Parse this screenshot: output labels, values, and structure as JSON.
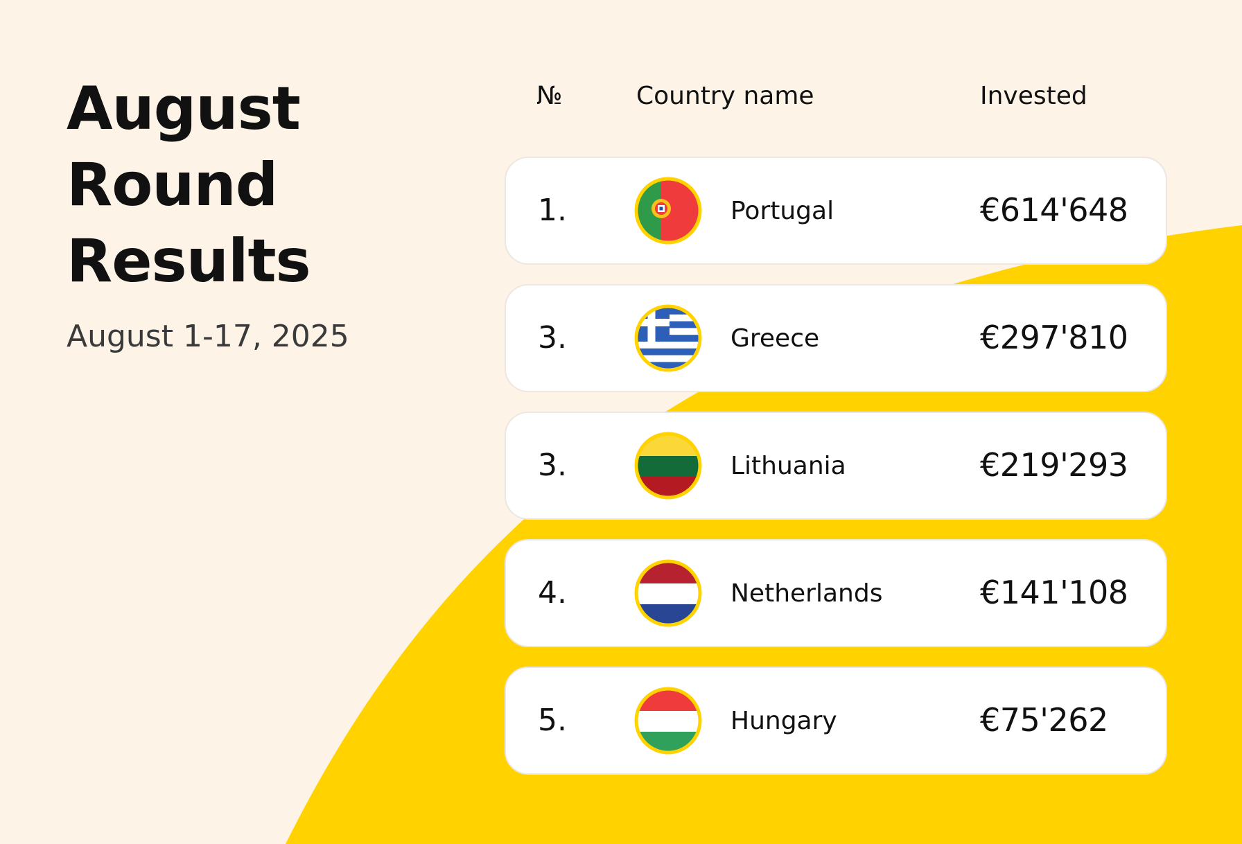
{
  "title": {
    "line1": "August",
    "line2": "Round",
    "line3": "Results"
  },
  "subtitle": "August 1-17, 2025",
  "colors": {
    "background": "#fdf3e7",
    "accent": "#ffd200",
    "card": "#ffffff",
    "flag_ring": "#ffd200"
  },
  "table": {
    "headers": {
      "number": "№",
      "country": "Country name",
      "invested": "Invested"
    },
    "rows": [
      {
        "rank": "1.",
        "country": "Portugal",
        "invested": "€614'648",
        "flag_icon": "portugal-flag-icon"
      },
      {
        "rank": "3.",
        "country": "Greece",
        "invested": "€297'810",
        "flag_icon": "greece-flag-icon"
      },
      {
        "rank": "3.",
        "country": "Lithuania",
        "invested": "€219'293",
        "flag_icon": "lithuania-flag-icon"
      },
      {
        "rank": "4.",
        "country": "Netherlands",
        "invested": "€141'108",
        "flag_icon": "netherlands-flag-icon"
      },
      {
        "rank": "5.",
        "country": "Hungary",
        "invested": "€75'262",
        "flag_icon": "hungary-flag-icon"
      }
    ]
  }
}
